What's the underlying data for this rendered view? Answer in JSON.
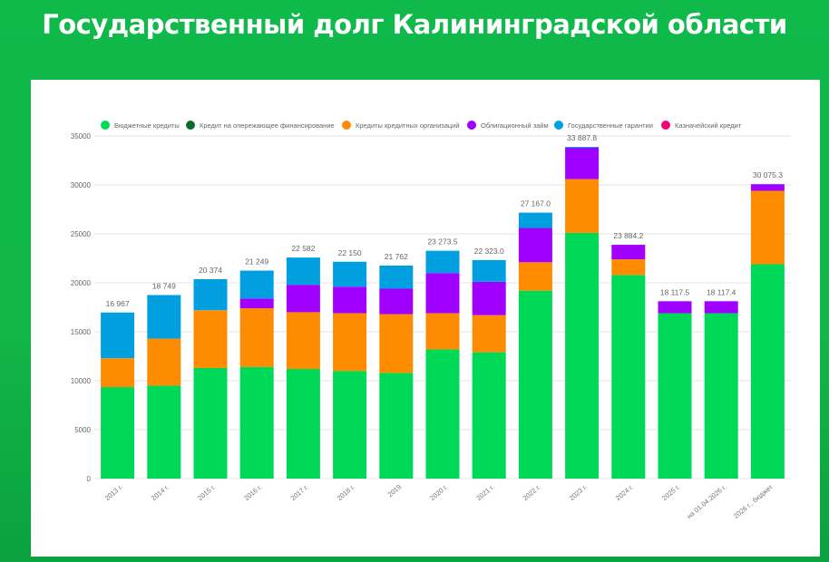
{
  "header": {
    "title": "Государственный долг Калининградской области"
  },
  "chart_data": {
    "type": "bar",
    "stacked": true,
    "title": "Государственный долг Калининградской области",
    "categories": [
      "2013 г.",
      "2014 г.",
      "2015 г.",
      "2016 г.",
      "2017 г.",
      "2018 г.",
      "2019",
      "2020 г.",
      "2021 г.",
      "2022 г.",
      "2023 г.",
      "2024 г.",
      "2025 г.",
      "на 01.04.2026 г.",
      "2026 г., бюджет"
    ],
    "totals": [
      16967,
      18749,
      20374,
      21249,
      22582,
      22150,
      21762,
      23273.5,
      22323.0,
      27167.0,
      33887.8,
      23884.2,
      18117.5,
      18117.4,
      30075.3
    ],
    "total_labels": [
      "16 967",
      "18 749",
      "20 374",
      "21 249",
      "22 582",
      "22 150",
      "21 762",
      "23 273.5",
      "22 323.0",
      "27 167.0",
      "33 887.8",
      "23 884.2",
      "18 117.5",
      "18 117.4",
      "30 075.3"
    ],
    "series": [
      {
        "name": "Бюджетные кредиты",
        "color": "#00d957",
        "values": [
          9350,
          9500,
          11300,
          11400,
          11200,
          11000,
          10800,
          13200,
          12900,
          19200,
          25100,
          20800,
          16900,
          16900,
          21900
        ]
      },
      {
        "name": "Кредит на опережающее финансирование",
        "color": "#0b6b2b",
        "values": [
          0,
          0,
          0,
          0,
          0,
          0,
          0,
          0,
          0,
          0,
          0,
          0,
          0,
          0,
          0
        ]
      },
      {
        "name": "Кредиты кредитных организаций",
        "color": "#ff8c00",
        "values": [
          2950,
          4800,
          5900,
          6000,
          5800,
          5900,
          6000,
          3700,
          3800,
          2900,
          5500,
          1600,
          0,
          0,
          7500
        ]
      },
      {
        "name": "Облигационный займ",
        "color": "#a000ff",
        "values": [
          0,
          0,
          0,
          1000,
          2800,
          2700,
          2600,
          4100,
          3400,
          3500,
          3200,
          1484.2,
          1217.5,
          1217.4,
          675.3
        ]
      },
      {
        "name": "Государственные гарантии",
        "color": "#00a0e0",
        "values": [
          4667,
          4449,
          3174,
          2849,
          2782,
          2550,
          2362,
          2273.5,
          2223.0,
          1567.0,
          87.8,
          0,
          0,
          0,
          0
        ]
      },
      {
        "name": "Казначейский кредит",
        "color": "#ec0677",
        "values": [
          0,
          0,
          0,
          0,
          0,
          0,
          0,
          0,
          0,
          0,
          0,
          0,
          0,
          0,
          0
        ]
      }
    ],
    "ylim": [
      0,
      35000
    ],
    "yticks": [
      "0",
      "5000",
      "10000",
      "15000",
      "20000",
      "25000",
      "30000",
      "35000"
    ],
    "legend": "top",
    "grid": true
  }
}
